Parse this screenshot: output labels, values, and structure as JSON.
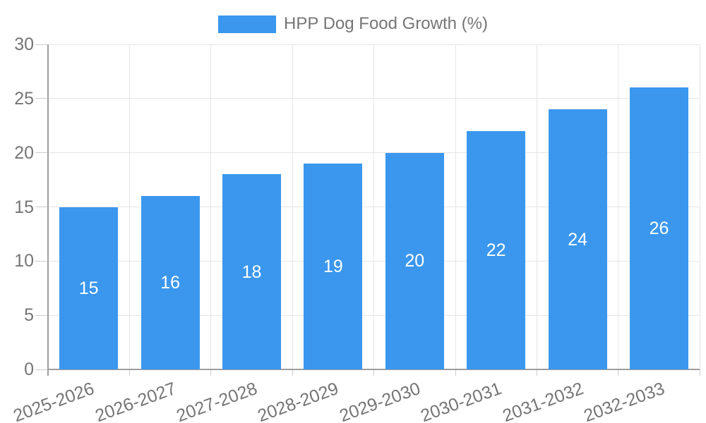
{
  "legend": {
    "label": "HPP Dog Food Growth (%)"
  },
  "colors": {
    "bar": "#3B97EE",
    "grid": "#E6E6E6",
    "axis": "#9E9E9E",
    "tick": "#CCCCCC",
    "text": "#757575",
    "value_label": "#FFFFFF",
    "background": "#FFFFFF"
  },
  "chart_data": {
    "type": "bar",
    "title": "HPP Dog Food Growth (%)",
    "series_name": "HPP Dog Food Growth (%)",
    "categories": [
      "2025-2026",
      "2026-2027",
      "2027-2028",
      "2028-2029",
      "2029-2030",
      "2030-2031",
      "2031-2032",
      "2032-2033"
    ],
    "values": [
      15,
      16,
      18,
      19,
      20,
      22,
      24,
      26
    ],
    "bar_labels": [
      15,
      16,
      18,
      19,
      20,
      22,
      24,
      26
    ],
    "xlabel": "",
    "ylabel": "",
    "ylim": [
      0,
      30
    ],
    "yticks": [
      0,
      5,
      10,
      15,
      20,
      25,
      30
    ],
    "grid": true,
    "legend_position": "top",
    "x_label_rotation_deg": -20
  }
}
